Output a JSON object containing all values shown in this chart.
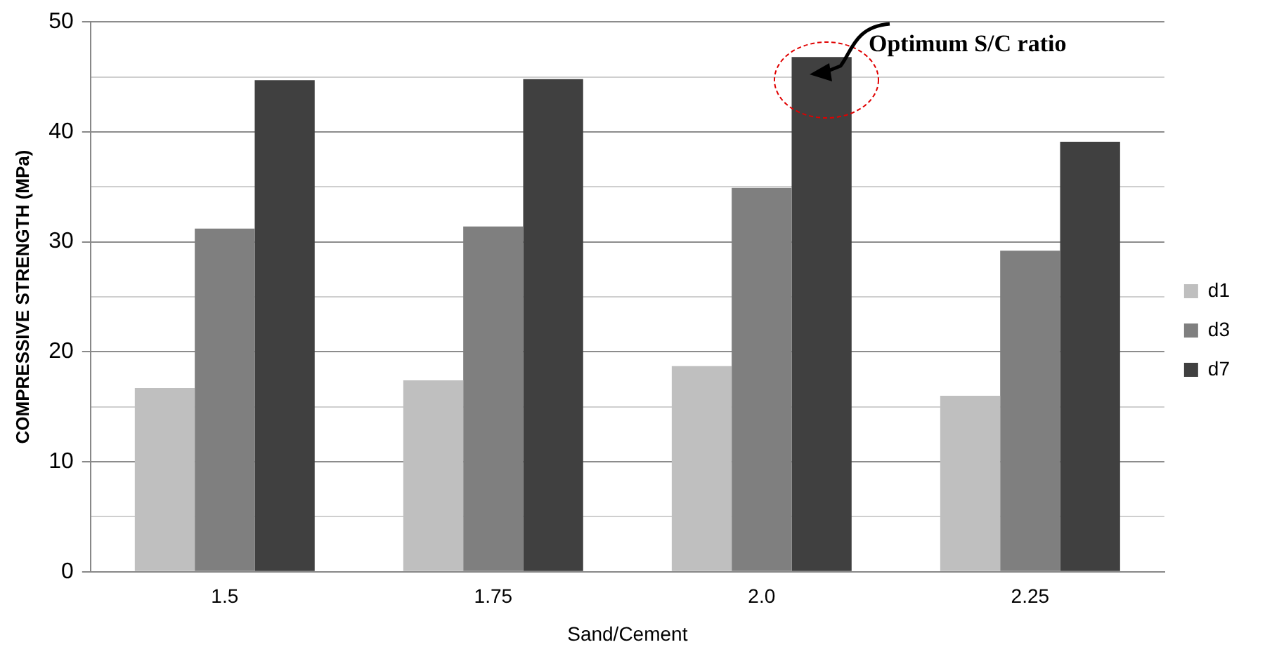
{
  "chart_data": {
    "type": "bar",
    "xlabel": "Sand/Cement",
    "ylabel": "COMPRESSIVE STRENGTH (MPa)",
    "categories": [
      "1.5",
      "1.75",
      "2.0",
      "2.25"
    ],
    "series": [
      {
        "name": "d1",
        "color": "#bfbfbf",
        "values": [
          16.7,
          17.4,
          18.7,
          16.0
        ]
      },
      {
        "name": "d3",
        "color": "#7f7f7f",
        "values": [
          31.2,
          31.4,
          34.9,
          29.2
        ]
      },
      {
        "name": "d7",
        "color": "#404040",
        "values": [
          44.7,
          44.8,
          46.8,
          39.1
        ]
      }
    ],
    "ylim": [
      0,
      50
    ],
    "yticks": [
      0,
      {
        "value": 5,
        "label": null
      },
      10,
      {
        "value": 15,
        "label": null
      },
      20,
      {
        "value": 25,
        "label": null
      },
      30,
      {
        "value": 35,
        "label": null
      },
      40,
      {
        "value": 45,
        "label": null
      },
      50
    ],
    "grid": "y",
    "legend": "right",
    "annotations": [
      "Optimum S/C ratio"
    ]
  }
}
